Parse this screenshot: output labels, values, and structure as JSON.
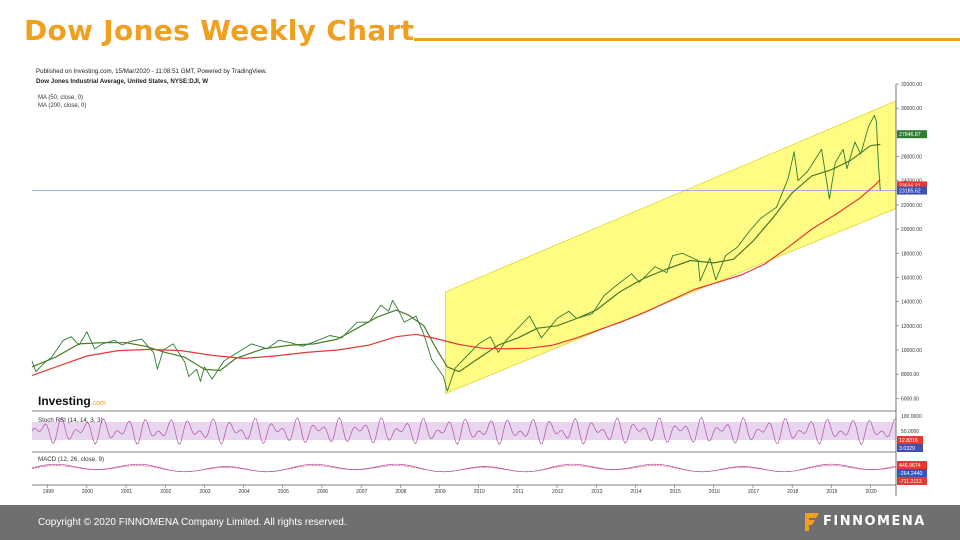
{
  "slide": {
    "title": "Dow Jones Weekly Chart",
    "footer_copyright": "Copyright © 2020 FINNOMENA Company Limited. All rights reserved.",
    "brand_name": "FINNOMENA",
    "accent_color": "#f0a01e",
    "footer_color": "#6f6f6f"
  },
  "chart_header": {
    "published_line": "Published on Investing.com, 15/Mar/2020 - 11:08:51 GMT, Powered by TradingView.",
    "instrument_line": "Dow Jones Industrial Average, United States, NYSE:DJI, W",
    "ma50_label": "MA (50, close, 0)",
    "ma200_label": "MA (200, close, 0)",
    "watermark": "Investing",
    "watermark_suffix": ".com"
  },
  "chart_data": {
    "type": "line",
    "title": "Dow Jones Industrial Average, United States, NYSE:DJI, W",
    "x_ticks": [
      "1999",
      "2000",
      "2001",
      "2002",
      "2003",
      "2004",
      "2005",
      "2006",
      "2007",
      "2008",
      "2009",
      "2010",
      "2011",
      "2012",
      "2013",
      "2014",
      "2015",
      "2016",
      "2017",
      "2018",
      "2019",
      "2020"
    ],
    "xlim": [
      1998.6,
      2020.65
    ],
    "y_ticks": [
      "6000.00",
      "8000.00",
      "10000.00",
      "12000.00",
      "14000.00",
      "16000.00",
      "18000.00",
      "20000.00",
      "22000.00",
      "24000.00",
      "26000.00",
      "28000.00",
      "30000.00",
      "32000.00"
    ],
    "ylim": [
      5200,
      32000
    ],
    "series": [
      {
        "name": "Dow Jones Industrial Average",
        "color": "#2e7d32",
        "points": [
          [
            1998.6,
            9100
          ],
          [
            1998.7,
            8200
          ],
          [
            1998.9,
            8900
          ],
          [
            1999.1,
            9400
          ],
          [
            1999.4,
            10800
          ],
          [
            1999.6,
            11100
          ],
          [
            1999.8,
            10400
          ],
          [
            2000.0,
            11500
          ],
          [
            2000.2,
            10100
          ],
          [
            2000.4,
            10500
          ],
          [
            2000.7,
            10800
          ],
          [
            2000.9,
            10400
          ],
          [
            2001.1,
            10700
          ],
          [
            2001.4,
            10900
          ],
          [
            2001.7,
            9800
          ],
          [
            2001.8,
            8400
          ],
          [
            2001.95,
            10000
          ],
          [
            2002.2,
            10500
          ],
          [
            2002.5,
            9000
          ],
          [
            2002.6,
            7800
          ],
          [
            2002.8,
            8400
          ],
          [
            2002.9,
            7400
          ],
          [
            2003.0,
            8600
          ],
          [
            2003.2,
            7600
          ],
          [
            2003.5,
            9100
          ],
          [
            2003.9,
            9900
          ],
          [
            2004.2,
            10500
          ],
          [
            2004.6,
            10100
          ],
          [
            2004.9,
            10800
          ],
          [
            2005.2,
            10600
          ],
          [
            2005.5,
            10300
          ],
          [
            2005.9,
            10800
          ],
          [
            2006.2,
            11200
          ],
          [
            2006.5,
            11000
          ],
          [
            2006.9,
            12300
          ],
          [
            2007.2,
            12300
          ],
          [
            2007.5,
            13700
          ],
          [
            2007.7,
            13200
          ],
          [
            2007.8,
            14100
          ],
          [
            2007.95,
            13300
          ],
          [
            2008.1,
            12300
          ],
          [
            2008.4,
            12800
          ],
          [
            2008.6,
            11300
          ],
          [
            2008.8,
            9200
          ],
          [
            2008.95,
            8500
          ],
          [
            2009.1,
            7800
          ],
          [
            2009.2,
            6600
          ],
          [
            2009.4,
            8500
          ],
          [
            2009.7,
            9500
          ],
          [
            2010.0,
            10500
          ],
          [
            2010.3,
            11100
          ],
          [
            2010.5,
            9800
          ],
          [
            2010.7,
            10800
          ],
          [
            2011.0,
            11800
          ],
          [
            2011.3,
            12800
          ],
          [
            2011.6,
            11000
          ],
          [
            2011.8,
            11800
          ],
          [
            2012.0,
            12600
          ],
          [
            2012.3,
            13200
          ],
          [
            2012.5,
            12600
          ],
          [
            2012.9,
            13000
          ],
          [
            2013.2,
            14500
          ],
          [
            2013.5,
            15300
          ],
          [
            2013.9,
            16300
          ],
          [
            2014.1,
            15600
          ],
          [
            2014.5,
            16900
          ],
          [
            2014.8,
            16400
          ],
          [
            2014.95,
            17800
          ],
          [
            2015.2,
            18000
          ],
          [
            2015.6,
            17400
          ],
          [
            2015.65,
            15700
          ],
          [
            2015.9,
            17600
          ],
          [
            2016.05,
            15800
          ],
          [
            2016.3,
            17800
          ],
          [
            2016.6,
            18500
          ],
          [
            2016.9,
            19800
          ],
          [
            2017.2,
            20900
          ],
          [
            2017.6,
            21800
          ],
          [
            2017.9,
            24200
          ],
          [
            2018.05,
            26400
          ],
          [
            2018.15,
            24000
          ],
          [
            2018.4,
            24800
          ],
          [
            2018.75,
            26600
          ],
          [
            2018.95,
            22500
          ],
          [
            2019.1,
            25500
          ],
          [
            2019.3,
            26600
          ],
          [
            2019.4,
            25000
          ],
          [
            2019.6,
            27200
          ],
          [
            2019.75,
            26200
          ],
          [
            2019.95,
            28500
          ],
          [
            2020.1,
            29400
          ],
          [
            2020.15,
            28900
          ],
          [
            2020.2,
            25400
          ],
          [
            2020.25,
            23200
          ]
        ]
      },
      {
        "name": "MA (50, close, 0)",
        "color": "#4a7a2a",
        "points": [
          [
            1998.6,
            8600
          ],
          [
            1999.2,
            9400
          ],
          [
            1999.8,
            10500
          ],
          [
            2000.4,
            10600
          ],
          [
            2001.0,
            10600
          ],
          [
            2001.5,
            10300
          ],
          [
            2002.0,
            9800
          ],
          [
            2002.5,
            9400
          ],
          [
            2003.0,
            8400
          ],
          [
            2003.4,
            8300
          ],
          [
            2003.8,
            9300
          ],
          [
            2004.5,
            10100
          ],
          [
            2005.2,
            10400
          ],
          [
            2005.8,
            10500
          ],
          [
            2006.4,
            10900
          ],
          [
            2006.9,
            11800
          ],
          [
            2007.4,
            12700
          ],
          [
            2007.9,
            13300
          ],
          [
            2008.2,
            12900
          ],
          [
            2008.6,
            12000
          ],
          [
            2008.9,
            10200
          ],
          [
            2009.2,
            8600
          ],
          [
            2009.5,
            8200
          ],
          [
            2009.9,
            9100
          ],
          [
            2010.5,
            10400
          ],
          [
            2011.0,
            11000
          ],
          [
            2011.5,
            11800
          ],
          [
            2012.0,
            12000
          ],
          [
            2012.5,
            12600
          ],
          [
            2013.0,
            13300
          ],
          [
            2013.6,
            14800
          ],
          [
            2014.2,
            15900
          ],
          [
            2014.8,
            16700
          ],
          [
            2015.4,
            17400
          ],
          [
            2016.0,
            17200
          ],
          [
            2016.5,
            17500
          ],
          [
            2017.0,
            19000
          ],
          [
            2017.5,
            20900
          ],
          [
            2018.0,
            23000
          ],
          [
            2018.5,
            24400
          ],
          [
            2019.0,
            24900
          ],
          [
            2019.5,
            25700
          ],
          [
            2020.0,
            26900
          ],
          [
            2020.25,
            27000
          ]
        ]
      },
      {
        "name": "MA (200, close, 0)",
        "color": "#e53935",
        "points": [
          [
            1998.6,
            7900
          ],
          [
            1999.3,
            8700
          ],
          [
            2000.0,
            9500
          ],
          [
            2000.8,
            9950
          ],
          [
            2001.6,
            10050
          ],
          [
            2002.4,
            9950
          ],
          [
            2003.2,
            9550
          ],
          [
            2004.0,
            9300
          ],
          [
            2004.8,
            9500
          ],
          [
            2005.6,
            9800
          ],
          [
            2006.4,
            10000
          ],
          [
            2007.2,
            10400
          ],
          [
            2007.9,
            11100
          ],
          [
            2008.4,
            11300
          ],
          [
            2008.9,
            10950
          ],
          [
            2009.5,
            10450
          ],
          [
            2010.1,
            10150
          ],
          [
            2010.7,
            10100
          ],
          [
            2011.3,
            10150
          ],
          [
            2011.9,
            10400
          ],
          [
            2012.5,
            11000
          ],
          [
            2013.1,
            11700
          ],
          [
            2013.7,
            12400
          ],
          [
            2014.3,
            13200
          ],
          [
            2014.9,
            14100
          ],
          [
            2015.5,
            15000
          ],
          [
            2016.1,
            15600
          ],
          [
            2016.7,
            16200
          ],
          [
            2017.3,
            17100
          ],
          [
            2017.9,
            18500
          ],
          [
            2018.5,
            20000
          ],
          [
            2019.1,
            21200
          ],
          [
            2019.7,
            22500
          ],
          [
            2020.1,
            23600
          ],
          [
            2020.25,
            24100
          ]
        ]
      }
    ],
    "channel": {
      "color": "#fffb6e",
      "upper": [
        [
          2009.15,
          14800
        ],
        [
          2020.65,
          30600
        ]
      ],
      "lower": [
        [
          2009.15,
          6400
        ],
        [
          2020.65,
          21700
        ]
      ]
    },
    "horizontal_line": {
      "value": 23185.62,
      "color": "#9aa8d8"
    },
    "price_labels": [
      {
        "text": "27846.87",
        "value": 27846.87,
        "color": "#2e7d32"
      },
      {
        "text": "23616.21",
        "value": 23616.21,
        "color": "#e53935"
      },
      {
        "text": "23185.62",
        "value": 23185.62,
        "color": "#3f51b5"
      }
    ]
  },
  "stoch_panel": {
    "label": "Stoch RSI (14, 14, 3, 3)",
    "y_ticks": [
      "100.0000",
      "50.0000",
      "0.0000"
    ],
    "value_labels": [
      {
        "text": "12.8316",
        "color": "#e53935"
      },
      {
        "text": "3.0329",
        "color": "#3f51b5"
      }
    ],
    "line_color": "#b050b0",
    "band_color": "#e8d5ee"
  },
  "macd_panel": {
    "label": "MACD (12, 26, close, 9)",
    "value_labels": [
      {
        "text": "446.9674",
        "color": "#e53935"
      },
      {
        "text": "-264.2440",
        "color": "#3f51b5"
      },
      {
        "text": "-711.2113",
        "color": "#e53935"
      }
    ],
    "macd_color": "#b050b0",
    "signal_color": "#e53935"
  }
}
